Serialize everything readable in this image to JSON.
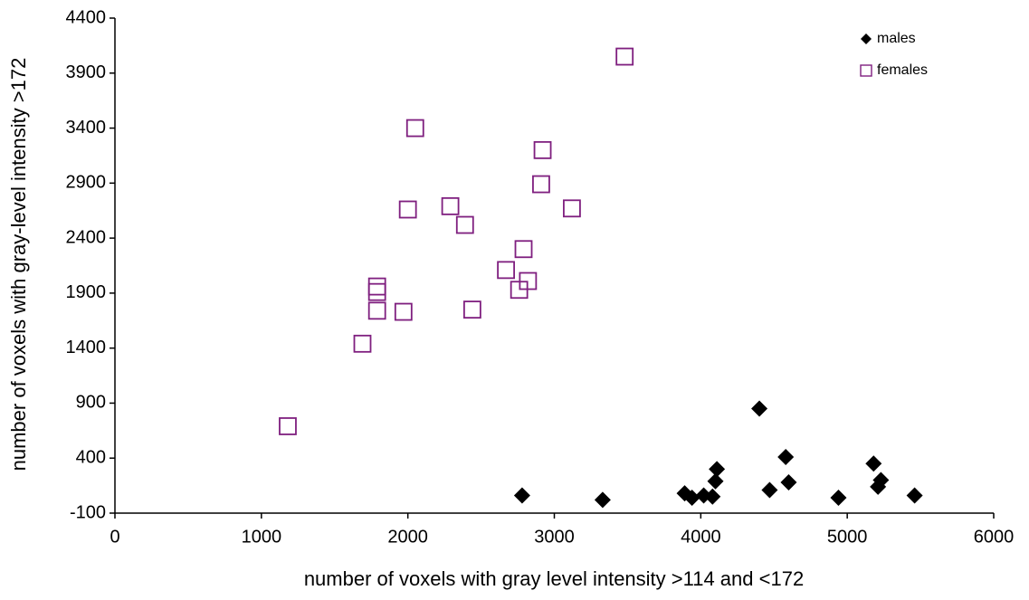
{
  "chart_data": {
    "type": "scatter",
    "x_label": "number of voxels with gray level intensity >114 and <172",
    "y_label": "number of voxels with gray-level intensity >172",
    "xlim": [
      0,
      6000
    ],
    "xticks": [
      0,
      1000,
      2000,
      3000,
      4000,
      5000,
      6000
    ],
    "ylim": [
      -100,
      4400
    ],
    "yticks": [
      -100,
      400,
      900,
      1400,
      1900,
      2400,
      2900,
      3400,
      3900,
      4400
    ],
    "grid": false,
    "legend": "upper right",
    "series": [
      {
        "name": "males",
        "color": "#000000",
        "marker": "diamond",
        "x": [
          2780,
          3330,
          3890,
          3940,
          4020,
          4100,
          4110,
          4080,
          4400,
          4470,
          4580,
          4600,
          4940,
          5180,
          5210,
          5230,
          5460
        ],
        "values": [
          60,
          20,
          80,
          40,
          60,
          190,
          300,
          50,
          850,
          110,
          410,
          180,
          40,
          350,
          140,
          200,
          60
        ]
      },
      {
        "name": "females",
        "color": "#7f1f7f",
        "marker": "square",
        "x": [
          1180,
          1690,
          1790,
          1790,
          1790,
          1970,
          2000,
          2050,
          2290,
          2390,
          2440,
          2670,
          2790,
          2820,
          2760,
          2910,
          2920,
          3120,
          3480
        ],
        "values": [
          690,
          1440,
          1740,
          1910,
          1960,
          1730,
          2660,
          3400,
          2690,
          2520,
          1750,
          2110,
          2300,
          2010,
          1930,
          2890,
          3200,
          2670,
          4050
        ]
      }
    ]
  }
}
